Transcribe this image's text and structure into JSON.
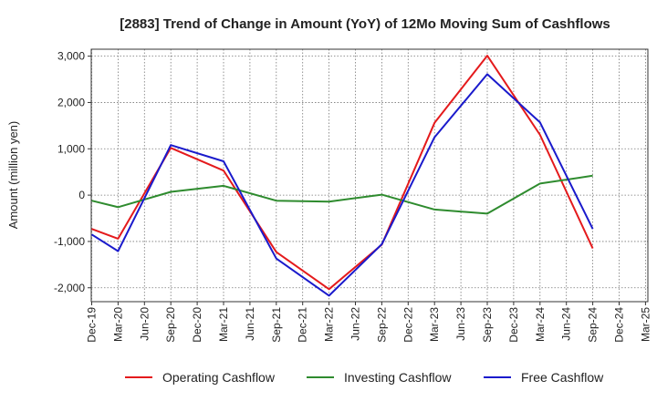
{
  "chart_data": {
    "type": "line",
    "title": "[2883]  Trend of Change in Amount (YoY) of 12Mo Moving Sum of Cashflows",
    "xlabel": "",
    "ylabel": "Amount (million yen)",
    "ylim": [
      -2300,
      3150
    ],
    "yticks": [
      3000,
      2000,
      1000,
      0,
      -1000,
      -2000
    ],
    "ytick_labels": [
      "3,000",
      "2,000",
      "1,000",
      "0",
      "-1,000",
      "-2,000"
    ],
    "categories": [
      "Dec-19",
      "Mar-20",
      "Jun-20",
      "Sep-20",
      "Dec-20",
      "Mar-21",
      "Jun-21",
      "Sep-21",
      "Dec-21",
      "Mar-22",
      "Jun-22",
      "Sep-22",
      "Dec-22",
      "Mar-23",
      "Jun-23",
      "Sep-23",
      "Dec-23",
      "Mar-24",
      "Jun-24",
      "Sep-24",
      "Dec-24",
      "Mar-25"
    ],
    "grid": true,
    "legend_position": "bottom",
    "series": [
      {
        "name": "Operating Cashflow",
        "color": "#e41a1c",
        "values": [
          -730,
          -940,
          null,
          1020,
          null,
          530,
          null,
          -1230,
          null,
          -2030,
          null,
          -1070,
          null,
          1560,
          null,
          3010,
          null,
          1300,
          null,
          -1150,
          null,
          null
        ]
      },
      {
        "name": "Investing Cashflow",
        "color": "#2e8b2e",
        "values": [
          -120,
          -260,
          null,
          70,
          null,
          200,
          null,
          -120,
          null,
          -140,
          null,
          10,
          null,
          -310,
          null,
          -400,
          null,
          250,
          null,
          420,
          null,
          null
        ]
      },
      {
        "name": "Free Cashflow",
        "color": "#1a1acc",
        "values": [
          -850,
          -1210,
          null,
          1080,
          null,
          730,
          null,
          -1370,
          null,
          -2170,
          null,
          -1060,
          null,
          1250,
          null,
          2610,
          null,
          1570,
          null,
          -730,
          null,
          null
        ]
      }
    ]
  }
}
